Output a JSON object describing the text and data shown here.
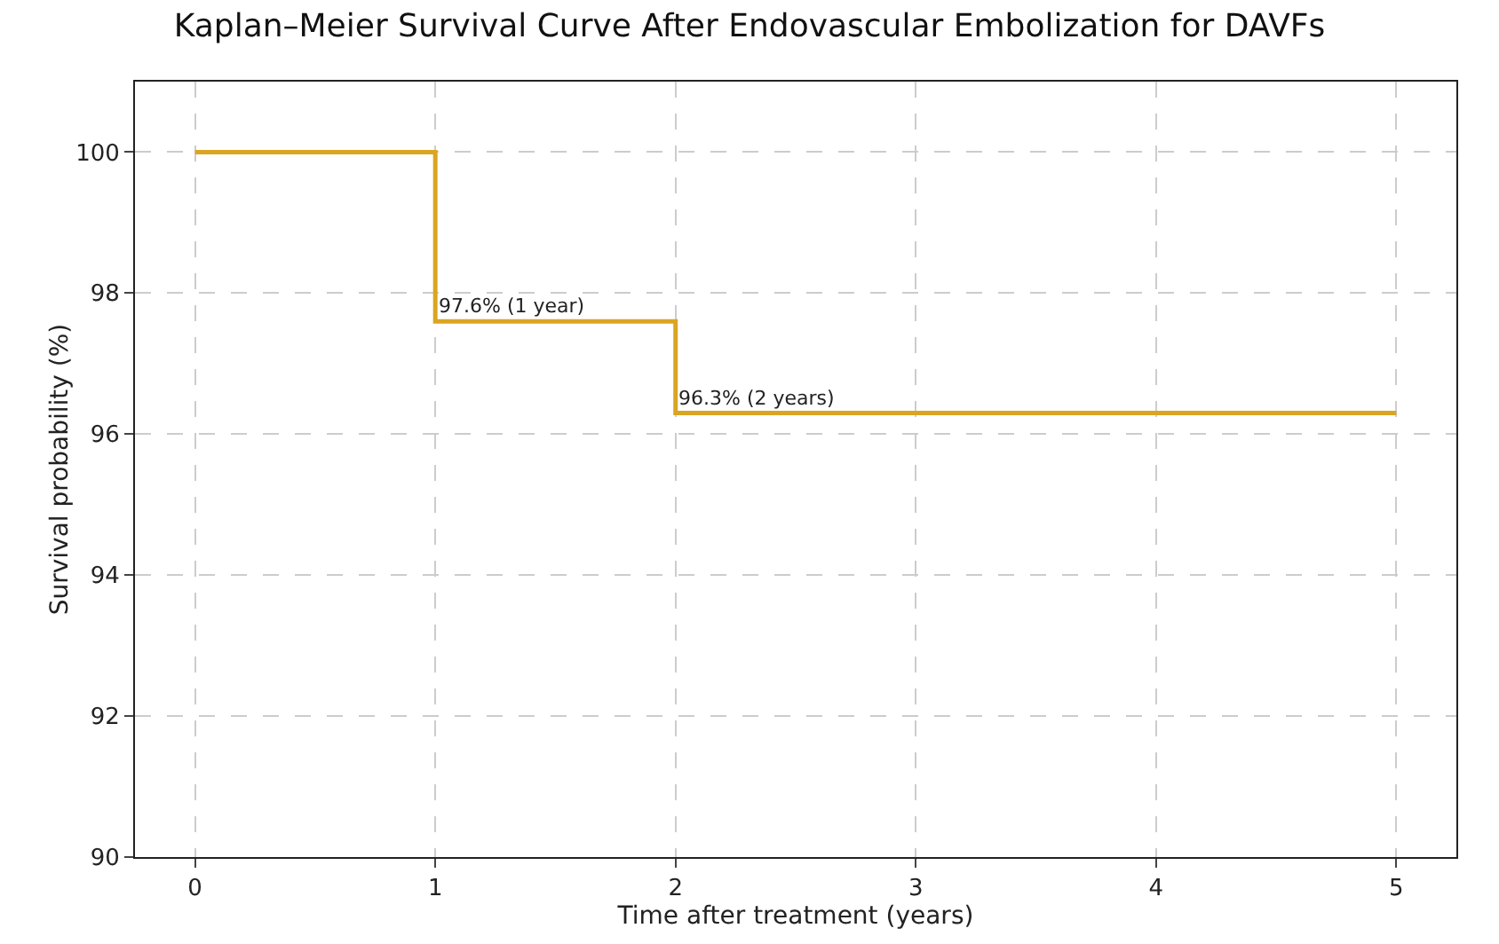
{
  "chart_data": {
    "type": "step",
    "title": "Kaplan–Meier Survival Curve After Endovascular Embolization for DAVFs",
    "xlabel": "Time after treatment (years)",
    "ylabel": "Survival probability (%)",
    "x": [
      0,
      1,
      2,
      5
    ],
    "series": [
      {
        "color": "#daa520",
        "values": [
          100,
          97.6,
          96.3,
          96.3
        ]
      }
    ],
    "annotations": [
      {
        "text": "97.6% (1 year)",
        "x": 1,
        "y": 97.6
      },
      {
        "text": "96.3% (2 years)",
        "x": 2,
        "y": 96.3
      }
    ],
    "xlim": [
      -0.25,
      5.25
    ],
    "xticks": [
      0,
      1,
      2,
      3,
      4,
      5
    ],
    "ylim": [
      90,
      101
    ],
    "yticks": [
      90,
      92,
      94,
      96,
      98,
      100
    ],
    "grid": true,
    "marker": "none",
    "line_style": "solid"
  }
}
